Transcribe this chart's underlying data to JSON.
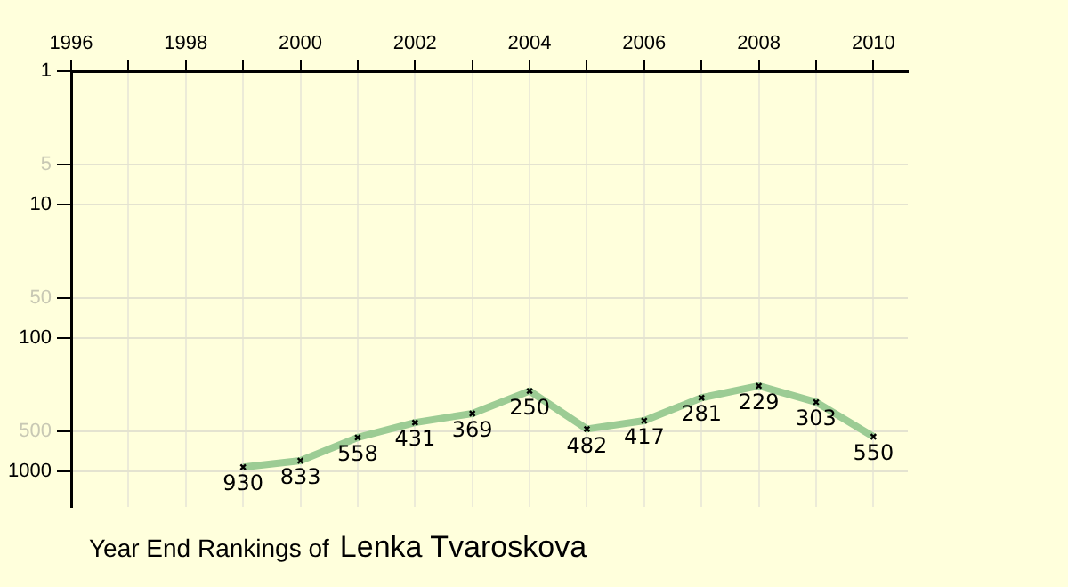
{
  "chart_data": {
    "type": "line",
    "title": "Year End Rankings of",
    "subtitle": "Lenka Tvaroskova",
    "x": [
      1999,
      2000,
      2001,
      2002,
      2003,
      2004,
      2005,
      2006,
      2007,
      2008,
      2009,
      2010
    ],
    "series": [
      {
        "color": "#9ccc94",
        "values": [
          930,
          833,
          558,
          431,
          369,
          250,
          482,
          417,
          281,
          229,
          303,
          550
        ]
      }
    ],
    "xlim": [
      1996,
      2010.6
    ],
    "xticks": [
      1996,
      {
        "value": 1997,
        "label": null
      },
      1998,
      {
        "value": 1999,
        "label": null
      },
      2000,
      {
        "value": 2001,
        "label": null
      },
      2002,
      {
        "value": 2003,
        "label": null
      },
      2004,
      {
        "value": 2005,
        "label": null
      },
      2006,
      {
        "value": 2007,
        "label": null
      },
      2008,
      {
        "value": 2009,
        "label": null
      },
      2010
    ],
    "ylim": [
      1850,
      1
    ],
    "yticks": [
      1,
      5,
      10,
      50,
      100,
      500,
      1000
    ],
    "log": "y",
    "grid": true,
    "legend": false,
    "marker": "cross",
    "line_style": "solid",
    "data_labels": true
  }
}
